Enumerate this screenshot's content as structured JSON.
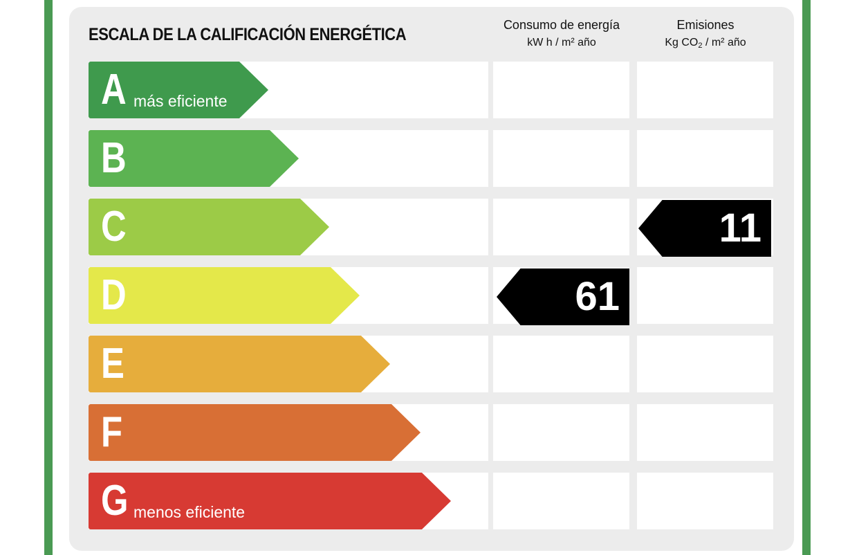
{
  "title": "ESCALA DE LA CALIFICACIÓN ENERGÉTICA",
  "columns": {
    "energy": {
      "label": "Consumo de energía",
      "unit_prefix": "kW h / m² año"
    },
    "emissions": {
      "label": "Emisiones",
      "unit_kg": "Kg CO",
      "unit_sub": "2",
      "unit_rest": " / m² año"
    }
  },
  "bands": [
    {
      "letter": "A",
      "note": "más eficiente",
      "color": "#3f9a4d"
    },
    {
      "letter": "B",
      "note": "",
      "color": "#5cb352"
    },
    {
      "letter": "C",
      "note": "",
      "color": "#9ccb47"
    },
    {
      "letter": "D",
      "note": "",
      "color": "#e4e84a"
    },
    {
      "letter": "E",
      "note": "",
      "color": "#e6ad3c"
    },
    {
      "letter": "F",
      "note": "",
      "color": "#d86f35"
    },
    {
      "letter": "G",
      "note": "menos eficiente",
      "color": "#d73a33"
    }
  ],
  "ratings": {
    "energy": {
      "band": "D",
      "value": "61"
    },
    "emissions": {
      "band": "C",
      "value": "11"
    }
  }
}
